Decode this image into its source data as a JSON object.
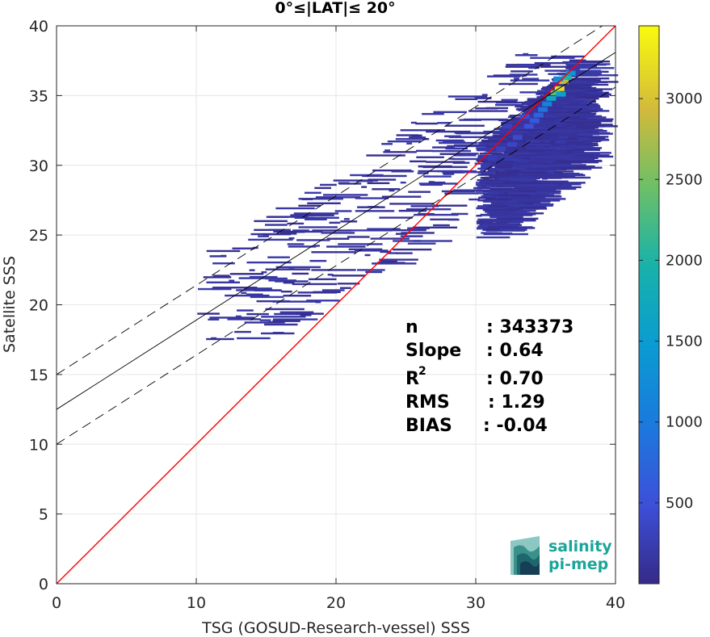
{
  "chart_data": {
    "type": "heatmap",
    "title": "0°≤|LAT|≤ 20°",
    "xlabel": "TSG (GOSUD-Research-vessel) SSS",
    "ylabel": "Satellite SSS",
    "xlim": [
      0,
      40
    ],
    "ylim": [
      0,
      40
    ],
    "xticks": [
      "0",
      "10",
      "20",
      "30",
      "40"
    ],
    "yticks": [
      "0",
      "5",
      "10",
      "15",
      "20",
      "25",
      "30",
      "35",
      "40"
    ],
    "grid": true,
    "colorbar": {
      "range": [
        0,
        3450
      ],
      "ticks": [
        "500",
        "1000",
        "1500",
        "2000",
        "2500",
        "3000"
      ],
      "tick_values": [
        500,
        1000,
        1500,
        2000,
        2500,
        3000
      ],
      "colormap": "parula"
    },
    "lines": [
      {
        "kind": "identity",
        "color": "#ff0000",
        "intercept": 0,
        "slope": 1
      },
      {
        "kind": "fit",
        "color": "#000000",
        "intercept": 12.5,
        "slope": 0.64
      },
      {
        "kind": "fit-upper",
        "color": "#000000",
        "dashed": true,
        "intercept": 15,
        "slope": 0.64
      },
      {
        "kind": "fit-lower",
        "color": "#000000",
        "dashed": true,
        "intercept": 10,
        "slope": 0.64
      }
    ],
    "density_cells": [
      [
        36.0,
        35.5,
        3200
      ],
      [
        36.3,
        36.0,
        2800
      ],
      [
        35.7,
        35.2,
        2400
      ],
      [
        36.5,
        36.3,
        2000
      ],
      [
        35.4,
        34.8,
        1700
      ],
      [
        36.8,
        36.6,
        1400
      ],
      [
        35.1,
        34.4,
        1100
      ],
      [
        36.1,
        35.1,
        1600
      ],
      [
        34.8,
        34.0,
        900
      ],
      [
        35.9,
        36.2,
        1200
      ],
      [
        34.5,
        33.6,
        700
      ],
      [
        34.2,
        33.2,
        600
      ],
      [
        33.8,
        32.8,
        500
      ],
      [
        33.5,
        33.5,
        450
      ],
      [
        33.0,
        32.0,
        400
      ],
      [
        32.6,
        31.5,
        350
      ],
      [
        32.2,
        32.8,
        300
      ],
      [
        31.8,
        31.2,
        300
      ],
      [
        31.2,
        30.5,
        250
      ],
      [
        30.7,
        30.0,
        220
      ]
    ],
    "stats": {
      "n_label": "n",
      "n_value": ": 343373",
      "slope_label": "Slope",
      "slope_value": ": 0.64",
      "r2_label": "R",
      "r2_sup": "2",
      "r2_value": ": 0.70",
      "rms_label": "RMS",
      "rms_value": ": 1.29",
      "bias_label": "BIAS",
      "bias_value": ": -0.04"
    }
  },
  "logo": {
    "line1": "salinity",
    "line2": "pi-mep",
    "color": "#1aa59a"
  }
}
